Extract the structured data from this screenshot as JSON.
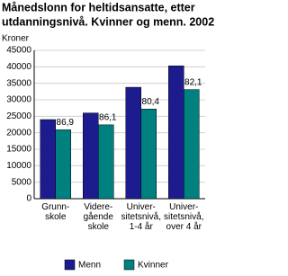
{
  "chart_data": {
    "type": "bar",
    "title": [
      "Månedslonn for heltidsansatte, etter",
      "utdanningsnivå. Kvinner og menn. 2002"
    ],
    "y_label": "Kroner",
    "categories": [
      "Grunn-\nskole",
      "Videre-\ngående\nskole",
      "Univer-\nsitetsnivå,\n1-4 år",
      "Univer-\nsitetsnivå,\nover 4 år"
    ],
    "series": [
      {
        "name": "Menn",
        "color": "#1c1c8f",
        "values": [
          24000,
          26000,
          33800,
          40300
        ]
      },
      {
        "name": "Kvinner",
        "color": "#00807f",
        "values": [
          20900,
          22400,
          27200,
          33100
        ],
        "annotations": [
          "86,9",
          "86,1",
          "80,4",
          "82,1"
        ]
      }
    ],
    "ylim": [
      0,
      45000
    ],
    "yticks": [
      0,
      5000,
      10000,
      15000,
      20000,
      25000,
      30000,
      35000,
      40000,
      45000
    ],
    "grid": true,
    "legend": "bottom"
  }
}
